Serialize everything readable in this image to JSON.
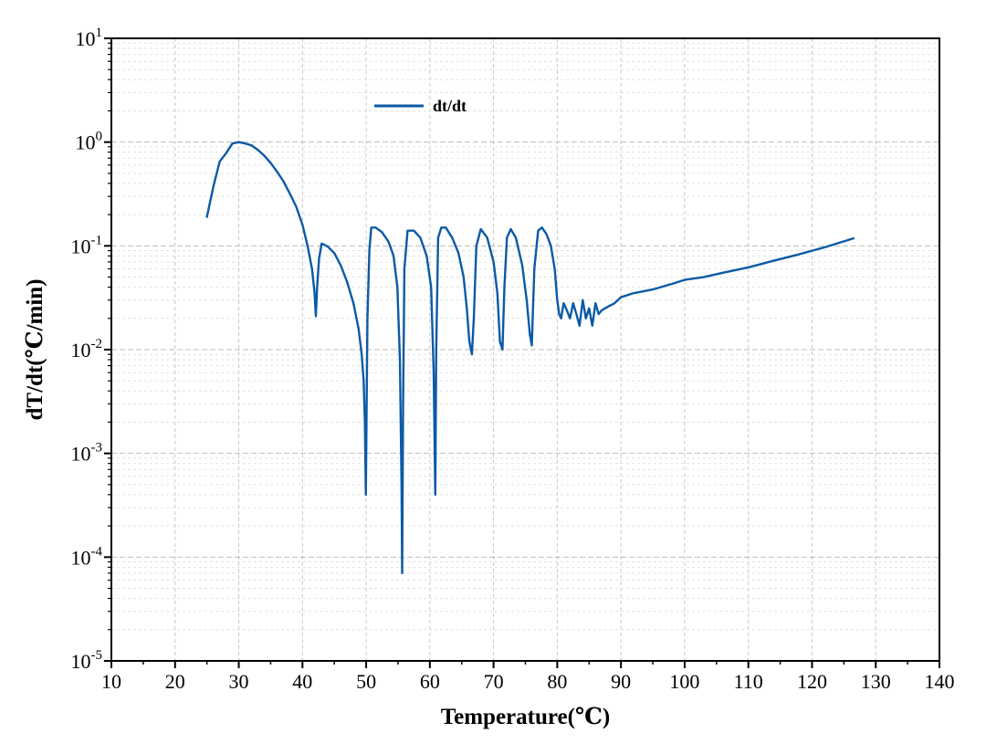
{
  "chart_data": {
    "type": "line",
    "xlabel": "Temperature(℃)",
    "ylabel": "dT/dt(℃/min)",
    "xlim": [
      10,
      140
    ],
    "ylim": [
      1e-05,
      10
    ],
    "yscale": "log",
    "grid": true,
    "legend_position": "top-left",
    "x_ticks": [
      "10",
      "20",
      "30",
      "40",
      "50",
      "60",
      "70",
      "80",
      "90",
      "100",
      "110",
      "120",
      "130",
      "140"
    ],
    "y_ticks": [
      {
        "base": "10",
        "exp": "-5"
      },
      {
        "base": "10",
        "exp": "-4"
      },
      {
        "base": "10",
        "exp": "-3"
      },
      {
        "base": "10",
        "exp": "-2"
      },
      {
        "base": "10",
        "exp": "-1"
      },
      {
        "base": "10",
        "exp": "0"
      },
      {
        "base": "10",
        "exp": "1"
      }
    ],
    "series": [
      {
        "name": "dt/dt",
        "color": "#0b5aa6",
        "x": [
          25.0,
          26.0,
          27.0,
          28.0,
          29.0,
          30.0,
          31.0,
          32.0,
          33.0,
          34.0,
          35.0,
          36.0,
          37.0,
          38.0,
          39.0,
          40.0,
          40.8,
          41.5,
          41.9,
          42.1,
          42.3,
          42.6,
          43.0,
          43.5,
          44.0,
          45.0,
          46.0,
          47.0,
          48.0,
          48.8,
          49.3,
          49.6,
          49.8,
          49.95,
          50.05,
          50.2,
          50.5,
          50.8,
          51.5,
          52.5,
          53.5,
          54.3,
          54.9,
          55.3,
          55.55,
          55.65,
          55.8,
          56.0,
          56.5,
          57.5,
          58.5,
          59.5,
          60.2,
          60.6,
          60.85,
          61.0,
          61.3,
          61.8,
          62.5,
          63.5,
          64.5,
          65.3,
          65.8,
          66.2,
          66.6,
          66.9,
          67.3,
          68.0,
          69.0,
          70.0,
          70.6,
          71.0,
          71.4,
          71.7,
          72.1,
          72.7,
          73.5,
          74.5,
          75.2,
          75.7,
          76.0,
          76.4,
          77.0,
          77.6,
          78.3,
          79.0,
          79.6,
          80.0,
          80.3,
          80.6,
          81.0,
          81.5,
          82.0,
          82.5,
          83.0,
          83.5,
          84.0,
          84.5,
          85.0,
          85.5,
          86.0,
          86.5,
          87.0,
          88.0,
          89.0,
          90.0,
          92.0,
          95.0,
          98.0,
          100.0,
          103.0,
          106.0,
          110.0,
          114.0,
          118.0,
          122.0,
          126.5
        ],
        "y": [
          0.19,
          0.37,
          0.65,
          0.78,
          0.97,
          1.0,
          0.97,
          0.93,
          0.84,
          0.74,
          0.63,
          0.52,
          0.42,
          0.32,
          0.24,
          0.16,
          0.1,
          0.06,
          0.035,
          0.021,
          0.04,
          0.075,
          0.105,
          0.102,
          0.098,
          0.085,
          0.065,
          0.045,
          0.028,
          0.016,
          0.009,
          0.005,
          0.002,
          0.0004,
          0.002,
          0.02,
          0.09,
          0.15,
          0.15,
          0.135,
          0.11,
          0.08,
          0.04,
          0.008,
          0.0005,
          7e-05,
          0.003,
          0.06,
          0.14,
          0.14,
          0.12,
          0.08,
          0.04,
          0.006,
          0.0004,
          0.01,
          0.12,
          0.15,
          0.15,
          0.12,
          0.085,
          0.05,
          0.025,
          0.012,
          0.009,
          0.02,
          0.1,
          0.145,
          0.12,
          0.07,
          0.035,
          0.012,
          0.01,
          0.04,
          0.12,
          0.145,
          0.12,
          0.065,
          0.03,
          0.014,
          0.011,
          0.06,
          0.14,
          0.15,
          0.13,
          0.1,
          0.06,
          0.03,
          0.022,
          0.02,
          0.028,
          0.024,
          0.02,
          0.028,
          0.022,
          0.017,
          0.03,
          0.02,
          0.025,
          0.017,
          0.028,
          0.022,
          0.024,
          0.026,
          0.028,
          0.032,
          0.035,
          0.038,
          0.043,
          0.047,
          0.05,
          0.055,
          0.062,
          0.072,
          0.083,
          0.097,
          0.118
        ]
      }
    ]
  }
}
